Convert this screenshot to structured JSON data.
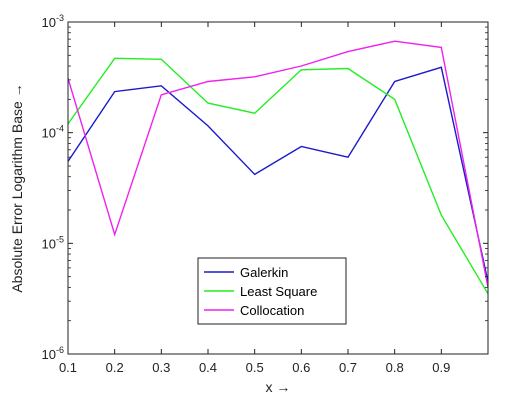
{
  "chart_data": {
    "type": "line",
    "title": "",
    "xlabel": "x →",
    "ylabel": "Absolute Error Logarithm Base →",
    "x": [
      0.1,
      0.2,
      0.3,
      0.4,
      0.5,
      0.6,
      0.7,
      0.8,
      0.9,
      1.0
    ],
    "xlim": [
      0.1,
      1.0
    ],
    "ylim": [
      1e-06,
      0.001
    ],
    "yscale": "log",
    "xticks": [
      0.1,
      0.2,
      0.3,
      0.4,
      0.5,
      0.6,
      0.7,
      0.8,
      0.9
    ],
    "xtick_labels": [
      "0.1",
      "0.2",
      "0.3",
      "0.4",
      "0.5",
      "0.6",
      "0.7",
      "0.8",
      "0.9"
    ],
    "ytick_labels": [
      {
        "base": "10",
        "exp": "-3",
        "value": 0.001
      },
      {
        "base": "10",
        "exp": "-4",
        "value": 0.0001
      },
      {
        "base": "10",
        "exp": "-5",
        "value": 1e-05
      },
      {
        "base": "10",
        "exp": "-6",
        "value": 1e-06
      }
    ],
    "grid": false,
    "legend_position": "bottom-center",
    "series": [
      {
        "name": "Galerkin",
        "color": "#1a1acc",
        "values": [
          5.5e-05,
          0.000235,
          0.000265,
          0.000115,
          4.2e-05,
          7.5e-05,
          6e-05,
          0.00029,
          0.00039,
          4.5e-06
        ]
      },
      {
        "name": "Least Square",
        "color": "#22ee22",
        "values": [
          0.00012,
          0.00047,
          0.00046,
          0.000185,
          0.00015,
          0.00037,
          0.00038,
          0.0002,
          1.8e-05,
          3.5e-06
        ]
      },
      {
        "name": "Collocation",
        "color": "#ee22ee",
        "values": [
          0.00031,
          1.2e-05,
          0.00022,
          0.00029,
          0.00032,
          0.0004,
          0.00054,
          0.00067,
          0.00059,
          4e-06
        ]
      }
    ]
  }
}
